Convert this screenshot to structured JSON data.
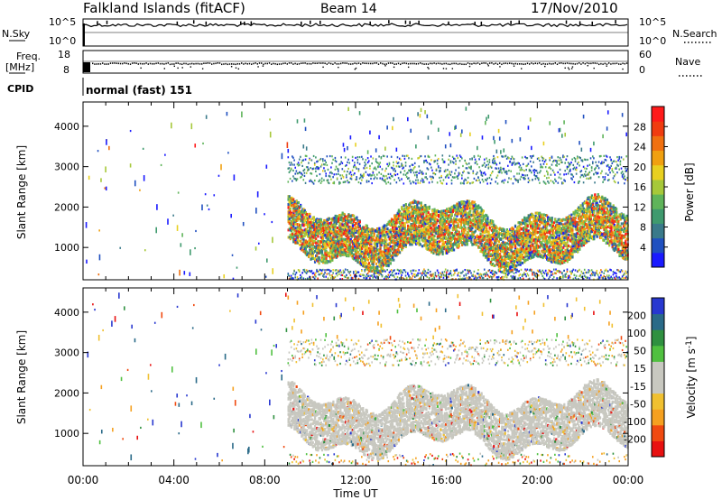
{
  "header": {
    "station": "Falkland Islands (fitACF)",
    "beam": "Beam 14",
    "date": "17/Nov/2010"
  },
  "top_panels": {
    "nsky_label": "N.Sky",
    "nsearch_label": "N.Search",
    "nsearch_ticks": [
      "10^5",
      "10^0"
    ],
    "nsky_ticks": [
      "10^5",
      "10^0"
    ],
    "freq_label": "Freq.",
    "freq_unit": "[MHz]",
    "freq_ticks": [
      "18",
      "8"
    ],
    "nave_label": "Nave",
    "nave_ticks": [
      "60",
      "0"
    ],
    "cpid_label": "CPID",
    "cpid_text": "normal (fast) 151"
  },
  "colors": {
    "power": [
      "#1a1aff",
      "#2050c0",
      "#3a7a8a",
      "#3f9a6e",
      "#5fb45a",
      "#a6c83a",
      "#e8d020",
      "#f0a010",
      "#f07010",
      "#f03c10",
      "#ff1a1a"
    ],
    "velocity": [
      "#e81010",
      "#f04a10",
      "#f5a020",
      "#f0c030",
      "#c8c8c0",
      "#c8c8c0",
      "#50c040",
      "#2f9040",
      "#2a6a88",
      "#2838d0"
    ]
  },
  "chart_data": [
    {
      "type": "heatmap",
      "title": "",
      "ylabel": "Slant Range [km]",
      "xlabel": "",
      "x_tick_labels": [
        "00:00",
        "04:00",
        "08:00",
        "12:00",
        "16:00",
        "20:00",
        "00:00"
      ],
      "x_range_hours": [
        0,
        24
      ],
      "yticks": [
        1000,
        2000,
        3000,
        4000
      ],
      "ylim": [
        200,
        4600
      ],
      "colorbar": {
        "label": "Power [dB]",
        "ticks": [
          4,
          8,
          12,
          16,
          20,
          24,
          28
        ],
        "range": [
          0,
          32
        ]
      },
      "region": {
        "start_hour": 9,
        "end_hour": 24,
        "band_low_km": 900,
        "band_high_km": 2000,
        "scatter_high_km": 3300
      }
    },
    {
      "type": "heatmap",
      "title": "",
      "ylabel": "Slant Range [km]",
      "xlabel": "Time UT",
      "x_tick_labels": [
        "00:00",
        "04:00",
        "08:00",
        "12:00",
        "16:00",
        "20:00",
        "00:00"
      ],
      "x_range_hours": [
        0,
        24
      ],
      "yticks": [
        1000,
        2000,
        3000,
        4000
      ],
      "ylim": [
        200,
        4600
      ],
      "colorbar": {
        "label": "Velocity [m s",
        "label_sup": "-1",
        "label_end": "]",
        "ticks": [
          "200",
          "100",
          "50",
          "15",
          "-15",
          "-50",
          "-100",
          "-200"
        ]
      },
      "region": {
        "start_hour": 9,
        "end_hour": 24,
        "band_low_km": 700,
        "band_high_km": 2000
      }
    }
  ]
}
